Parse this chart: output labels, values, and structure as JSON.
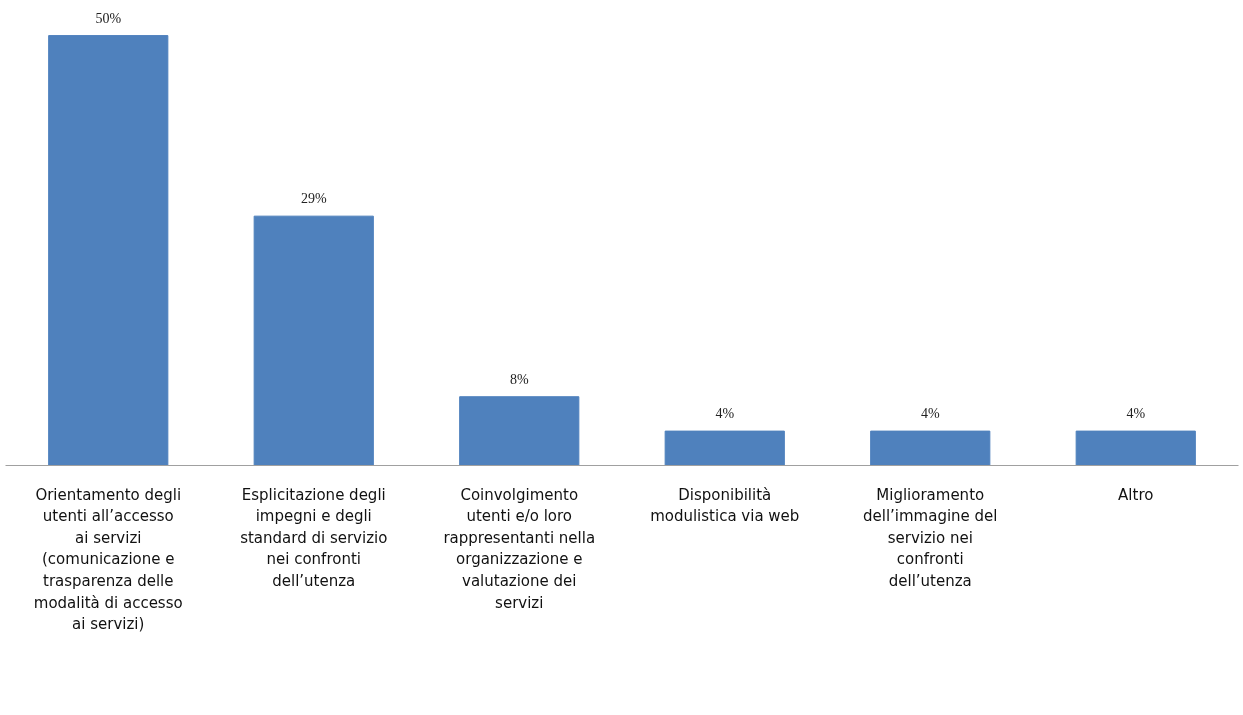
{
  "chart_data": {
    "type": "bar",
    "categories": [
      "Orientamento degli utenti all’accesso ai servizi (comunicazione e trasparenza delle modalità di accesso ai servizi)",
      "Esplicitazione degli impegni e degli standard di servizio nei confronti dell’utenza",
      "Coinvolgimento utenti e/o loro rappresentanti nella organizzazione e valutazione dei servizi",
      "Disponibilità modulistica via web",
      "Miglioramento dell’immagine del servizio nei confronti dell’utenza",
      "Altro"
    ],
    "values": [
      50,
      29,
      8,
      4,
      4,
      4
    ],
    "value_labels": [
      "50%",
      "29%",
      "8%",
      "4%",
      "4%",
      "4%"
    ],
    "color": "#4f81bd",
    "grid": false
  }
}
